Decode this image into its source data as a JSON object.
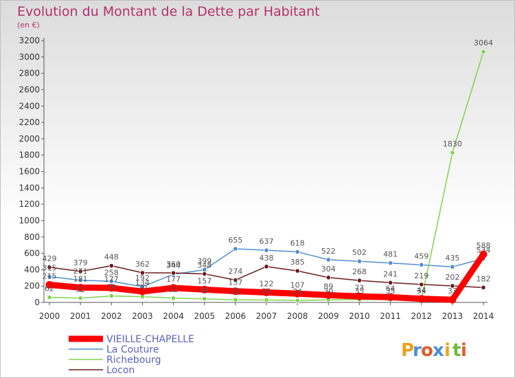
{
  "chart_data": {
    "type": "line",
    "title": "Evolution du Montant de la Dette par Habitant",
    "subtitle": "(en €)",
    "x": [
      "2000",
      "2001",
      "2002",
      "2003",
      "2004",
      "2005",
      "2006",
      "2007",
      "2008",
      "2009",
      "2010",
      "2011",
      "2012",
      "2013",
      "2014"
    ],
    "ylim": [
      0,
      3200
    ],
    "yticks": [
      0,
      200,
      400,
      600,
      800,
      1000,
      1200,
      1400,
      1600,
      1800,
      2000,
      2200,
      2400,
      2600,
      2800,
      3000,
      3200
    ],
    "grid": false,
    "legend_position": "bottom-left",
    "series": [
      {
        "name": "VIEILLE-CHAPELLE",
        "color": "#ff0000",
        "values": [
          215,
          181,
          177,
          134,
          177,
          157,
          137,
          122,
          107,
          89,
          73,
          64,
          44,
          33,
          588
        ],
        "labels": [
          "215",
          "181",
          "177",
          "134",
          "177",
          "157",
          "137",
          "122",
          "107",
          "89",
          "73",
          "64",
          "44",
          "33",
          "588"
        ]
      },
      {
        "name": "La Couture",
        "color": "#4e8fd0",
        "values": [
          315,
          271,
          258,
          192,
          344,
          399,
          655,
          637,
          618,
          522,
          502,
          481,
          459,
          435,
          534
        ],
        "labels": [
          "315",
          "271",
          "258",
          "192",
          "344",
          "399",
          "655",
          "637",
          "618",
          "522",
          "502",
          "481",
          "459",
          "435",
          "534"
        ]
      },
      {
        "name": "Richebourg",
        "color": "#7ed44a",
        "values": [
          62,
          52,
          79,
          70,
          52,
          44,
          32,
          29,
          24,
          30,
          35,
          35,
          34,
          1830,
          3064
        ],
        "labels": [
          "62",
          "52",
          "79",
          "70",
          "52",
          "44",
          "32",
          "29",
          "24",
          "30",
          "35",
          "35",
          "34",
          "1830",
          "3064"
        ]
      },
      {
        "name": "Locon",
        "color": "#6b1a1a",
        "values": [
          429,
          379,
          448,
          362,
          360,
          348,
          274,
          438,
          385,
          304,
          268,
          241,
          219,
          202,
          182
        ],
        "labels": [
          "429",
          "379",
          "448",
          "362",
          "360",
          "348",
          "274",
          "438",
          "385",
          "304",
          "268",
          "241",
          "219",
          "202",
          "182"
        ]
      }
    ]
  },
  "brand": {
    "letters": [
      "P",
      "r",
      "o",
      "x",
      "i",
      "t",
      "i"
    ],
    "colors": [
      "#e8a21e",
      "#4a8fd6",
      "#e35a2a",
      "#4a8fd6",
      "#e8a21e",
      "#6fba3b",
      "#e35a2a"
    ]
  }
}
